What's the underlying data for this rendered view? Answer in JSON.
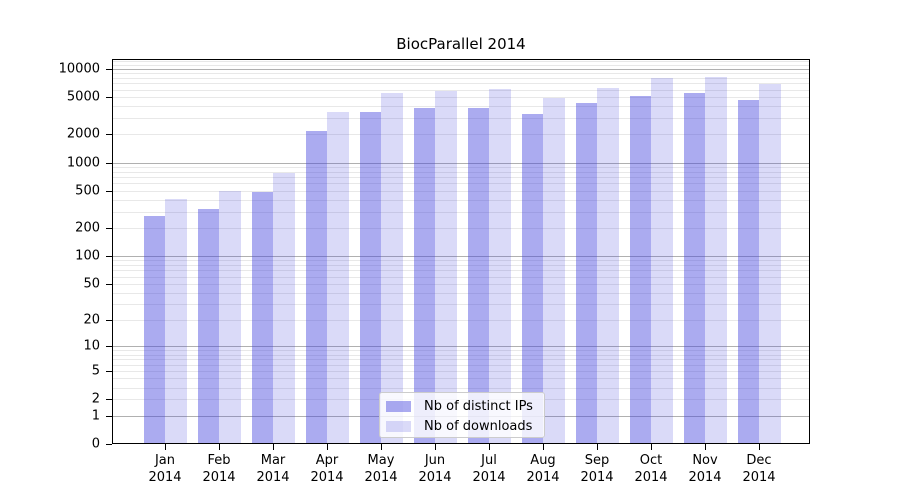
{
  "chart_data": {
    "type": "bar",
    "title": "BiocParallel 2014",
    "y_scale": "log10(value+1)",
    "grid": "major+minor",
    "legend_position": "lower center",
    "categories": [
      "Jan",
      "Feb",
      "Mar",
      "Apr",
      "May",
      "Jun",
      "Jul",
      "Aug",
      "Sep",
      "Oct",
      "Nov",
      "Dec"
    ],
    "category_year": "2014",
    "series": [
      {
        "name": "Nb of distinct IPs",
        "color": "#4444dd",
        "alpha": 0.45,
        "values": [
          270,
          320,
          480,
          2200,
          3450,
          3850,
          3800,
          3320,
          4330,
          5100,
          5520,
          4640
        ]
      },
      {
        "name": "Nb of downloads",
        "color": "#4444dd",
        "alpha": 0.2,
        "values": [
          410,
          500,
          770,
          3480,
          5500,
          5780,
          6130,
          4870,
          6230,
          7900,
          8200,
          6920
        ]
      }
    ],
    "yticks": [
      0,
      1,
      2,
      5,
      10,
      20,
      50,
      100,
      200,
      500,
      1000,
      2000,
      5000,
      10000
    ],
    "ylim": [
      0,
      12800
    ],
    "major_gridlines": [
      1,
      10,
      100,
      1000,
      10000
    ],
    "colors": {
      "major_grid": "#b0b0b0",
      "minor_grid": "#e8e8e8",
      "axis": "#000000",
      "text": "#000000",
      "legend_border": "#cccccc"
    }
  }
}
